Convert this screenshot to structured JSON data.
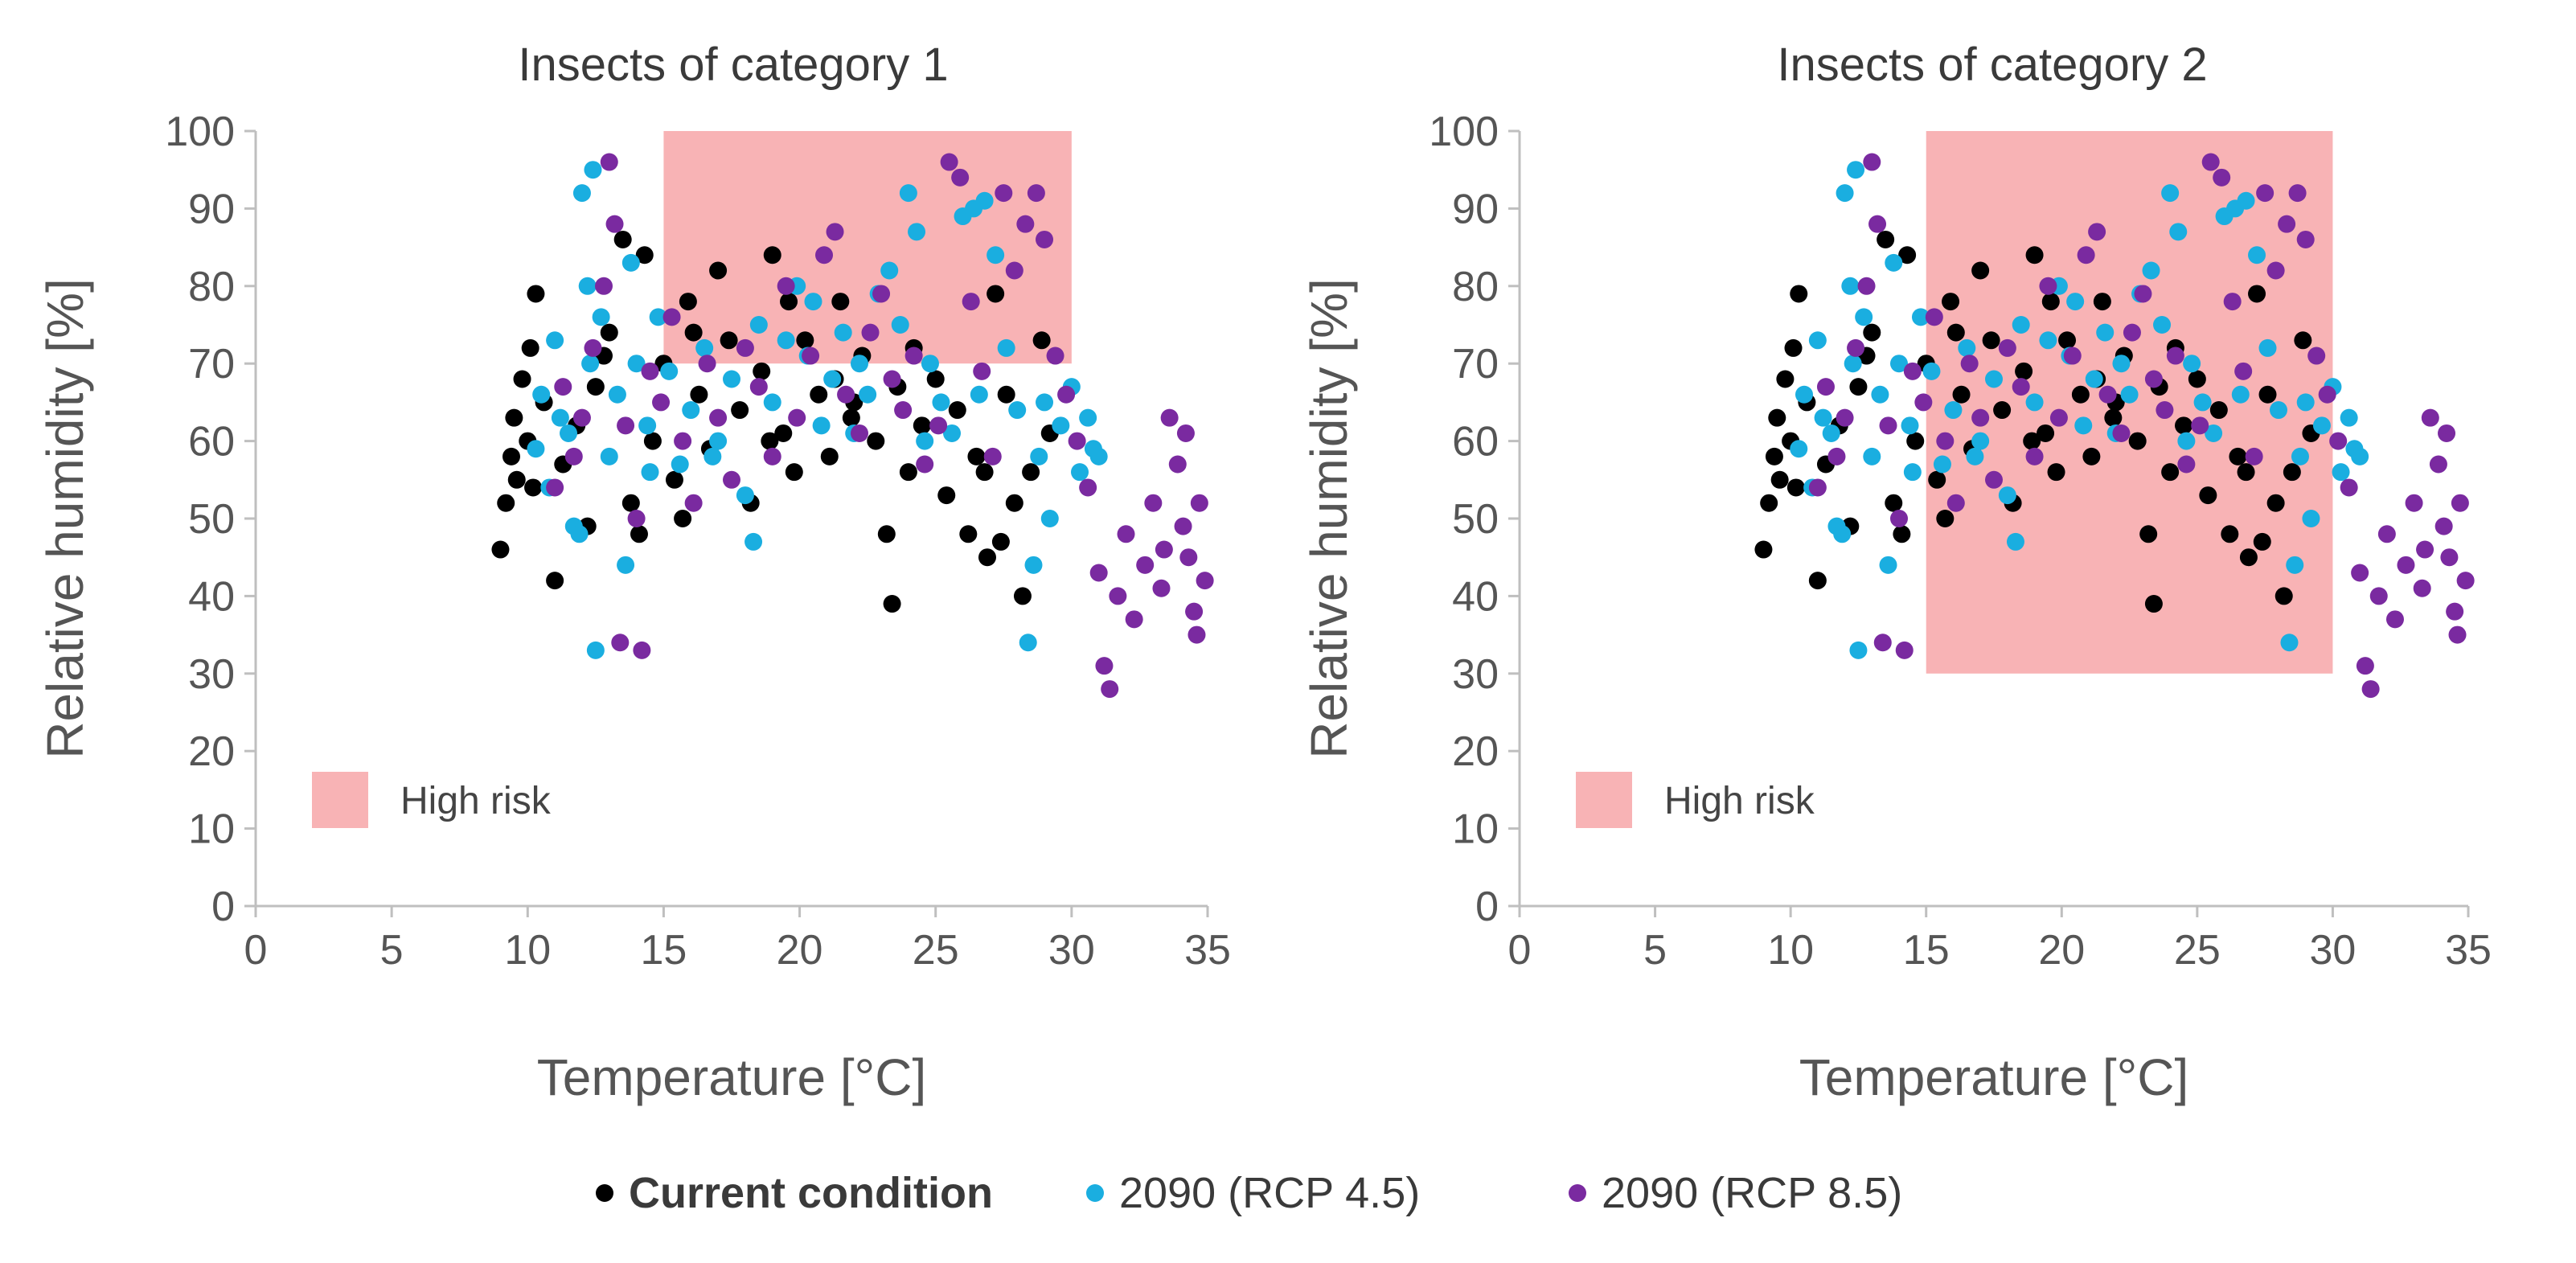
{
  "chart_data": [
    {
      "type": "scatter",
      "title": "Insects of category 1",
      "xlabel": "Temperature [°C]",
      "ylabel": "Relative humidity [%]",
      "xlim": [
        0,
        35
      ],
      "ylim": [
        0,
        100
      ],
      "xticks": [
        "0",
        "5",
        "10",
        "15",
        "20",
        "25",
        "30",
        "35"
      ],
      "yticks": [
        "0",
        "10",
        "20",
        "30",
        "40",
        "50",
        "60",
        "70",
        "80",
        "90",
        "100"
      ],
      "grid": false,
      "high_risk_region": {
        "x": [
          15,
          30
        ],
        "y": [
          70,
          100
        ]
      },
      "risk_label": "High risk"
    },
    {
      "type": "scatter",
      "title": "Insects of category 2",
      "xlabel": "Temperature [°C]",
      "ylabel": "Relative humidity [%]",
      "xlim": [
        0,
        35
      ],
      "ylim": [
        0,
        100
      ],
      "xticks": [
        "0",
        "5",
        "10",
        "15",
        "20",
        "25",
        "30",
        "35"
      ],
      "yticks": [
        "0",
        "10",
        "20",
        "30",
        "40",
        "50",
        "60",
        "70",
        "80",
        "90",
        "100"
      ],
      "grid": false,
      "high_risk_region": {
        "x": [
          15,
          30
        ],
        "y": [
          30,
          100
        ]
      },
      "risk_label": "High risk"
    }
  ],
  "series": [
    {
      "name": "Current condition",
      "color": "#000000",
      "points": [
        [
          9.0,
          46
        ],
        [
          9.2,
          52
        ],
        [
          9.4,
          58
        ],
        [
          9.5,
          63
        ],
        [
          9.6,
          55
        ],
        [
          9.8,
          68
        ],
        [
          10.0,
          60
        ],
        [
          10.1,
          72
        ],
        [
          10.2,
          54
        ],
        [
          10.3,
          79
        ],
        [
          10.6,
          65
        ],
        [
          11.0,
          42
        ],
        [
          11.3,
          57
        ],
        [
          11.8,
          62
        ],
        [
          12.2,
          49
        ],
        [
          12.5,
          67
        ],
        [
          13.0,
          74
        ],
        [
          13.5,
          86
        ],
        [
          13.8,
          52
        ],
        [
          14.1,
          48
        ],
        [
          14.3,
          84
        ],
        [
          14.6,
          60
        ],
        [
          15.0,
          70
        ],
        [
          15.4,
          55
        ],
        [
          15.9,
          78
        ],
        [
          16.3,
          66
        ],
        [
          16.7,
          59
        ],
        [
          17.0,
          82
        ],
        [
          17.4,
          73
        ],
        [
          17.8,
          64
        ],
        [
          18.2,
          52
        ],
        [
          18.6,
          69
        ],
        [
          19.0,
          84
        ],
        [
          19.4,
          61
        ],
        [
          19.8,
          56
        ],
        [
          20.2,
          73
        ],
        [
          20.7,
          66
        ],
        [
          21.1,
          58
        ],
        [
          21.5,
          78
        ],
        [
          21.9,
          63
        ],
        [
          22.3,
          71
        ],
        [
          22.8,
          60
        ],
        [
          23.2,
          48
        ],
        [
          23.4,
          39
        ],
        [
          23.6,
          67
        ],
        [
          24.0,
          56
        ],
        [
          24.5,
          62
        ],
        [
          25.0,
          68
        ],
        [
          25.4,
          53
        ],
        [
          25.8,
          64
        ],
        [
          26.2,
          48
        ],
        [
          26.5,
          58
        ],
        [
          26.9,
          45
        ],
        [
          27.2,
          79
        ],
        [
          27.6,
          66
        ],
        [
          27.9,
          52
        ],
        [
          28.2,
          40
        ],
        [
          28.5,
          56
        ],
        [
          28.9,
          73
        ],
        [
          29.2,
          61
        ],
        [
          16.1,
          74
        ],
        [
          18.9,
          60
        ],
        [
          21.3,
          68
        ],
        [
          24.2,
          72
        ],
        [
          26.8,
          56
        ],
        [
          19.6,
          78
        ],
        [
          12.8,
          71
        ],
        [
          15.7,
          50
        ],
        [
          22.0,
          65
        ],
        [
          27.4,
          47
        ]
      ]
    },
    {
      "name": "2090 (RCP 4.5)",
      "color": "#1aaee0",
      "points": [
        [
          10.3,
          59
        ],
        [
          10.5,
          66
        ],
        [
          10.8,
          54
        ],
        [
          11.0,
          73
        ],
        [
          11.2,
          63
        ],
        [
          11.5,
          61
        ],
        [
          11.7,
          49
        ],
        [
          12.0,
          92
        ],
        [
          12.2,
          80
        ],
        [
          12.4,
          95
        ],
        [
          12.5,
          33
        ],
        [
          12.7,
          76
        ],
        [
          13.0,
          58
        ],
        [
          13.3,
          66
        ],
        [
          13.6,
          44
        ],
        [
          14.0,
          70
        ],
        [
          14.4,
          62
        ],
        [
          14.8,
          76
        ],
        [
          15.2,
          69
        ],
        [
          15.6,
          57
        ],
        [
          16.0,
          64
        ],
        [
          16.5,
          72
        ],
        [
          17.0,
          60
        ],
        [
          17.5,
          68
        ],
        [
          18.0,
          53
        ],
        [
          18.5,
          75
        ],
        [
          19.0,
          65
        ],
        [
          19.5,
          73
        ],
        [
          19.9,
          80
        ],
        [
          20.3,
          71
        ],
        [
          20.8,
          62
        ],
        [
          21.2,
          68
        ],
        [
          21.6,
          74
        ],
        [
          22.0,
          61
        ],
        [
          22.5,
          66
        ],
        [
          22.9,
          79
        ],
        [
          23.3,
          82
        ],
        [
          23.7,
          75
        ],
        [
          24.0,
          92
        ],
        [
          24.3,
          87
        ],
        [
          24.8,
          70
        ],
        [
          25.2,
          65
        ],
        [
          25.6,
          61
        ],
        [
          26.0,
          89
        ],
        [
          26.4,
          90
        ],
        [
          26.8,
          91
        ],
        [
          27.2,
          84
        ],
        [
          27.6,
          72
        ],
        [
          28.0,
          64
        ],
        [
          28.4,
          34
        ],
        [
          28.8,
          58
        ],
        [
          29.2,
          50
        ],
        [
          29.6,
          62
        ],
        [
          30.0,
          67
        ],
        [
          30.3,
          56
        ],
        [
          30.6,
          63
        ],
        [
          30.8,
          59
        ],
        [
          28.6,
          44
        ],
        [
          29.0,
          65
        ],
        [
          31.0,
          58
        ],
        [
          12.3,
          70
        ],
        [
          16.8,
          58
        ],
        [
          22.2,
          70
        ],
        [
          26.6,
          66
        ],
        [
          14.5,
          56
        ],
        [
          20.5,
          78
        ],
        [
          24.6,
          60
        ],
        [
          18.3,
          47
        ],
        [
          11.9,
          48
        ],
        [
          13.8,
          83
        ]
      ]
    },
    {
      "name": "2090 (RCP 8.5)",
      "color": "#7a2aa0",
      "points": [
        [
          11.0,
          54
        ],
        [
          11.3,
          67
        ],
        [
          11.7,
          58
        ],
        [
          12.0,
          63
        ],
        [
          12.4,
          72
        ],
        [
          12.8,
          80
        ],
        [
          13.0,
          96
        ],
        [
          13.2,
          88
        ],
        [
          13.4,
          34
        ],
        [
          13.6,
          62
        ],
        [
          14.0,
          50
        ],
        [
          14.2,
          33
        ],
        [
          14.5,
          69
        ],
        [
          14.9,
          65
        ],
        [
          15.3,
          76
        ],
        [
          15.7,
          60
        ],
        [
          16.1,
          52
        ],
        [
          16.6,
          70
        ],
        [
          17.0,
          63
        ],
        [
          17.5,
          55
        ],
        [
          18.0,
          72
        ],
        [
          18.5,
          67
        ],
        [
          19.0,
          58
        ],
        [
          19.5,
          80
        ],
        [
          19.9,
          63
        ],
        [
          20.4,
          71
        ],
        [
          20.9,
          84
        ],
        [
          21.3,
          87
        ],
        [
          21.7,
          66
        ],
        [
          22.2,
          61
        ],
        [
          22.6,
          74
        ],
        [
          23.0,
          79
        ],
        [
          23.4,
          68
        ],
        [
          23.8,
          64
        ],
        [
          24.2,
          71
        ],
        [
          24.6,
          57
        ],
        [
          25.1,
          62
        ],
        [
          25.5,
          96
        ],
        [
          25.9,
          94
        ],
        [
          26.3,
          78
        ],
        [
          26.7,
          69
        ],
        [
          27.1,
          58
        ],
        [
          27.5,
          92
        ],
        [
          27.9,
          82
        ],
        [
          28.3,
          88
        ],
        [
          28.7,
          92
        ],
        [
          29.0,
          86
        ],
        [
          29.4,
          71
        ],
        [
          29.8,
          66
        ],
        [
          30.2,
          60
        ],
        [
          30.6,
          54
        ],
        [
          31.0,
          43
        ],
        [
          31.2,
          31
        ],
        [
          31.4,
          28
        ],
        [
          31.7,
          40
        ],
        [
          32.0,
          48
        ],
        [
          32.3,
          37
        ],
        [
          32.7,
          44
        ],
        [
          33.0,
          52
        ],
        [
          33.3,
          41
        ],
        [
          33.6,
          63
        ],
        [
          33.9,
          57
        ],
        [
          34.1,
          49
        ],
        [
          34.3,
          45
        ],
        [
          34.5,
          38
        ],
        [
          34.7,
          52
        ],
        [
          34.9,
          42
        ],
        [
          34.6,
          35
        ],
        [
          34.2,
          61
        ],
        [
          33.4,
          46
        ]
      ]
    }
  ],
  "legend": [
    {
      "label": "Current condition",
      "bold": true
    },
    {
      "label": "2090 (RCP 4.5)",
      "bold": false
    },
    {
      "label": "2090 (RCP 8.5)",
      "bold": false
    }
  ],
  "colors": {
    "high_risk": "#f8b3b5",
    "axis": "#bfbfbf",
    "tick_text": "#555555"
  }
}
